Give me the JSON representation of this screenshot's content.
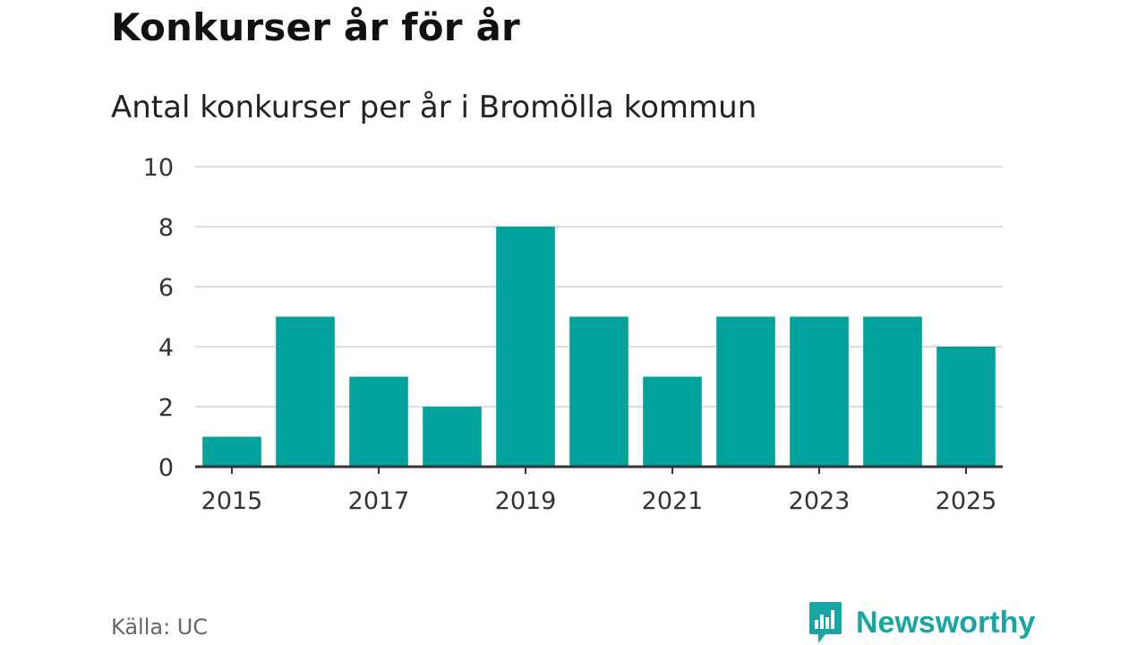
{
  "header": {
    "title": "Konkurser år för år",
    "subtitle": "Antal konkurser per år i Bromölla kommun"
  },
  "footer": {
    "source": "Källa: UC",
    "brand": "Newsworthy"
  },
  "colors": {
    "bar": "#00a39b",
    "gridline": "#dddddd",
    "axis": "#333333",
    "brand": "#17a6a2"
  },
  "chart_data": {
    "type": "bar",
    "title": "Konkurser år för år",
    "subtitle": "Antal konkurser per år i Bromölla kommun",
    "xlabel": "",
    "ylabel": "",
    "categories": [
      "2015",
      "2016",
      "2017",
      "2018",
      "2019",
      "2020",
      "2021",
      "2022",
      "2023",
      "2024",
      "2025"
    ],
    "values": [
      1,
      5,
      3,
      2,
      8,
      5,
      3,
      5,
      5,
      5,
      4
    ],
    "x_tick_labels": [
      "2015",
      "2017",
      "2019",
      "2021",
      "2023",
      "2025"
    ],
    "y_ticks": [
      0,
      2,
      4,
      6,
      8,
      10
    ],
    "ylim": [
      0,
      10
    ],
    "grid": true,
    "legend": "none",
    "source": "Källa: UC"
  }
}
